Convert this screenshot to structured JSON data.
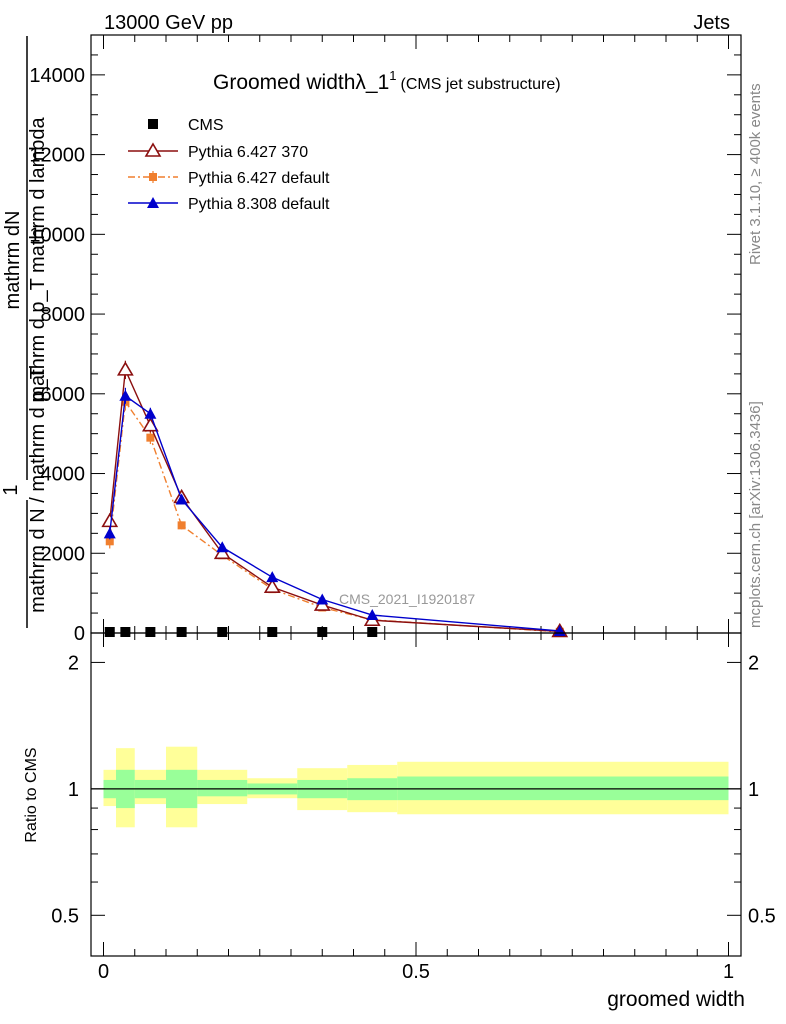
{
  "header": {
    "left": "13000 GeV pp",
    "right": "Jets"
  },
  "side_labels": {
    "rivet": "Rivet 3.1.10, ≥ 400k events",
    "mcplots": "mcplots.cern.ch [arXiv:1306.3436]"
  },
  "watermark": "CMS_2021_I1920187",
  "chart_data": [
    {
      "type": "line",
      "title": "Groomed widthλ_1",
      "title_sup": "1",
      "subtitle": "(CMS jet substructure)",
      "ylabel_numerator": "mathrm dN",
      "ylabel_denominator": "mathrm d p_T mathrm d lambda",
      "ylabel_left": "1",
      "ylabel_left_denominator": "mathrm d N / mathrm d p_T",
      "xlim": [
        -0.02,
        1.02
      ],
      "ylim": [
        0,
        15000
      ],
      "y_ticks": [
        0,
        2000,
        4000,
        6000,
        8000,
        10000,
        12000,
        14000
      ],
      "y_tick_labels": [
        "0",
        "2000",
        "4000",
        "6000",
        "8000",
        "10000",
        "12000",
        "14000"
      ],
      "legend_position": "top-left",
      "colors": {
        "cms": "#000000",
        "p6_370": "#8b0f0f",
        "p6_default": "#f07f2e",
        "p8_default": "#0000cc"
      },
      "series": [
        {
          "name": "CMS",
          "x": [
            0.01,
            0.035,
            0.075,
            0.125,
            0.19,
            0.27,
            0.35,
            0.43
          ],
          "y": [
            0,
            0,
            0,
            0,
            0,
            0,
            0,
            0
          ]
        },
        {
          "name": "Pythia 6.427 370",
          "x": [
            0.01,
            0.035,
            0.075,
            0.125,
            0.19,
            0.27,
            0.35,
            0.43,
            0.73
          ],
          "y": [
            2800,
            6600,
            5200,
            3400,
            2000,
            1150,
            700,
            320,
            40
          ],
          "yerr": [
            200,
            230,
            170,
            110,
            60,
            40,
            30,
            20,
            10
          ]
        },
        {
          "name": "Pythia 6.427 default",
          "x": [
            0.01,
            0.035,
            0.075,
            0.125,
            0.19,
            0.27,
            0.35,
            0.43,
            0.73
          ],
          "y": [
            2300,
            5800,
            4900,
            2700,
            1950,
            1100,
            640,
            330,
            30
          ],
          "yerr": [
            180,
            220,
            160,
            100,
            60,
            40,
            30,
            20,
            10
          ]
        },
        {
          "name": "Pythia 8.308 default",
          "x": [
            0.01,
            0.035,
            0.075,
            0.125,
            0.19,
            0.27,
            0.35,
            0.43,
            0.73
          ],
          "y": [
            2500,
            5950,
            5500,
            3350,
            2150,
            1400,
            840,
            450,
            50
          ],
          "yerr": [
            150,
            200,
            150,
            100,
            60,
            40,
            30,
            20,
            10
          ]
        }
      ]
    },
    {
      "type": "area",
      "ylabel": "Ratio to CMS",
      "xlabel": "groomed width",
      "xlim": [
        -0.02,
        1.02
      ],
      "ylim": [
        0.4,
        2.35
      ],
      "y_scale": "log",
      "x_ticks": [
        0,
        0.5,
        1
      ],
      "x_tick_labels": [
        "0",
        "0.5",
        "1"
      ],
      "y_ticks": [
        0.5,
        1,
        2
      ],
      "y_tick_labels": [
        "0.5",
        "1",
        "2"
      ],
      "reference_line": 1,
      "band_colors": {
        "inner": "#99ff99",
        "outer": "#ffff99"
      },
      "bands": [
        {
          "x": [
            0.0,
            0.02
          ],
          "inner": [
            0.95,
            1.05
          ],
          "outer": [
            0.91,
            1.11
          ]
        },
        {
          "x": [
            0.02,
            0.05
          ],
          "inner": [
            0.9,
            1.11
          ],
          "outer": [
            0.81,
            1.25
          ]
        },
        {
          "x": [
            0.05,
            0.1
          ],
          "inner": [
            0.95,
            1.05
          ],
          "outer": [
            0.92,
            1.11
          ]
        },
        {
          "x": [
            0.1,
            0.15
          ],
          "inner": [
            0.9,
            1.11
          ],
          "outer": [
            0.81,
            1.26
          ]
        },
        {
          "x": [
            0.15,
            0.23
          ],
          "inner": [
            0.96,
            1.05
          ],
          "outer": [
            0.92,
            1.11
          ]
        },
        {
          "x": [
            0.23,
            0.31
          ],
          "inner": [
            0.97,
            1.03
          ],
          "outer": [
            0.95,
            1.06
          ]
        },
        {
          "x": [
            0.31,
            0.39
          ],
          "inner": [
            0.95,
            1.05
          ],
          "outer": [
            0.89,
            1.12
          ]
        },
        {
          "x": [
            0.39,
            0.47
          ],
          "inner": [
            0.94,
            1.06
          ],
          "outer": [
            0.88,
            1.14
          ]
        },
        {
          "x": [
            0.47,
            1.0
          ],
          "inner": [
            0.94,
            1.07
          ],
          "outer": [
            0.87,
            1.16
          ]
        }
      ]
    }
  ]
}
